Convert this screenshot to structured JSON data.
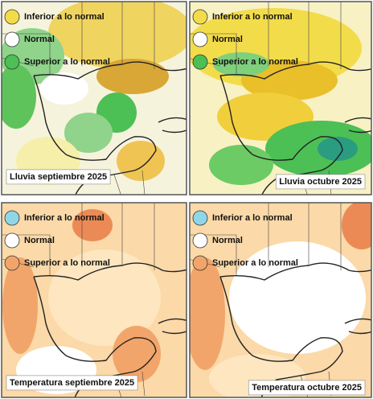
{
  "panels": [
    {
      "caption": "Lluvia septiembre 2025",
      "legend": [
        {
          "label": "Inferior a lo normal",
          "color": "#f3dc4a"
        },
        {
          "label": "Normal",
          "color": "#ffffff"
        },
        {
          "label": "Superior a lo normal",
          "color": "#4cbf55"
        }
      ]
    },
    {
      "caption": "Lluvia octubre 2025",
      "legend": [
        {
          "label": "Inferior a lo normal",
          "color": "#f3dc4a"
        },
        {
          "label": "Normal",
          "color": "#ffffff"
        },
        {
          "label": "Superior a lo normal",
          "color": "#4cbf55"
        }
      ]
    },
    {
      "caption": "Temperatura septiembre 2025",
      "legend": [
        {
          "label": "Inferior a lo normal",
          "color": "#8fd6e8"
        },
        {
          "label": "Normal",
          "color": "#ffffff"
        },
        {
          "label": "Superior a lo normal",
          "color": "#f2a56a"
        }
      ]
    },
    {
      "caption": "Temperatura octubre 2025",
      "legend": [
        {
          "label": "Inferior a lo normal",
          "color": "#8fd6e8"
        },
        {
          "label": "Normal",
          "color": "#ffffff"
        },
        {
          "label": "Superior a lo normal",
          "color": "#f2a56a"
        }
      ]
    }
  ]
}
